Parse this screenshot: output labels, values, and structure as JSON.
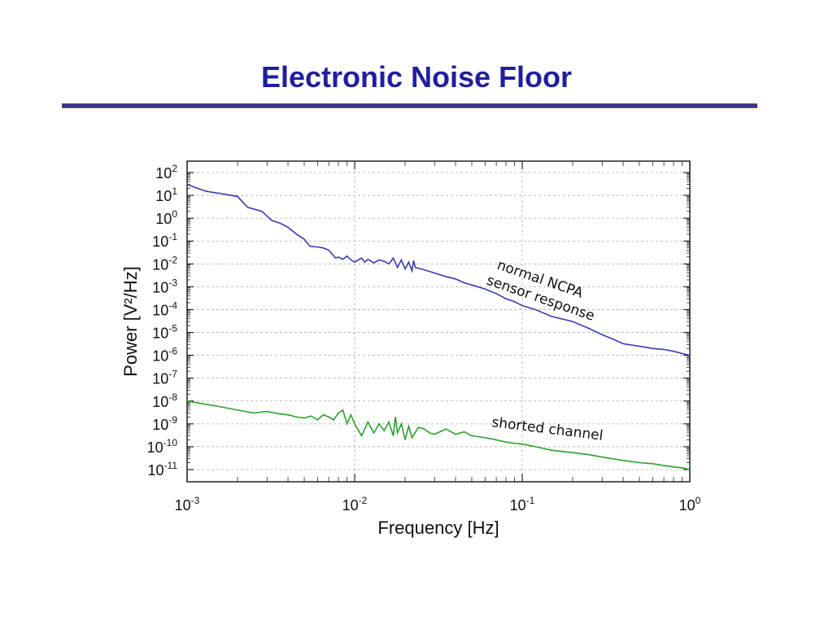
{
  "slide": {
    "title": "Electronic Noise Floor"
  },
  "colors": {
    "title": "#1f1f9e",
    "rule": "#333399",
    "rule_border": "#c0392b"
  },
  "chart_data": {
    "type": "line",
    "title": "",
    "xlabel": "Frequency [Hz]",
    "ylabel": "Power [V²/Hz]",
    "xscale": "log",
    "yscale": "log",
    "xlim": [
      0.001,
      1
    ],
    "ylim": [
      1e-11,
      100
    ],
    "grid": true,
    "x_ticks": [
      {
        "value": 0.001,
        "base": "10",
        "exp": "-3"
      },
      {
        "value": 0.01,
        "base": "10",
        "exp": "-2"
      },
      {
        "value": 0.1,
        "base": "10",
        "exp": "-1"
      },
      {
        "value": 1,
        "base": "10",
        "exp": "0"
      }
    ],
    "y_ticks": [
      {
        "value": 100,
        "base": "10",
        "exp": "2"
      },
      {
        "value": 10,
        "base": "10",
        "exp": "1"
      },
      {
        "value": 1,
        "base": "10",
        "exp": "0"
      },
      {
        "value": 0.1,
        "base": "10",
        "exp": "-1"
      },
      {
        "value": 0.01,
        "base": "10",
        "exp": "-2"
      },
      {
        "value": 0.001,
        "base": "10",
        "exp": "-3"
      },
      {
        "value": 0.0001,
        "base": "10",
        "exp": "-4"
      },
      {
        "value": 1e-05,
        "base": "10",
        "exp": "-5"
      },
      {
        "value": 1e-06,
        "base": "10",
        "exp": "-6"
      },
      {
        "value": 1e-07,
        "base": "10",
        "exp": "-7"
      },
      {
        "value": 1e-08,
        "base": "10",
        "exp": "-8"
      },
      {
        "value": 1e-09,
        "base": "10",
        "exp": "-9"
      },
      {
        "value": 1e-10,
        "base": "10",
        "exp": "-10"
      },
      {
        "value": 1e-11,
        "base": "10",
        "exp": "-11"
      }
    ],
    "series": [
      {
        "name": "normal NCPA sensor response",
        "label_lines": [
          "normal NCPA",
          "sensor response"
        ],
        "color": "#3a3ab0",
        "points": [
          [
            0.001,
            30
          ],
          [
            0.0013,
            15
          ],
          [
            0.0016,
            12
          ],
          [
            0.002,
            9
          ],
          [
            0.0023,
            3
          ],
          [
            0.0028,
            2
          ],
          [
            0.0032,
            0.8
          ],
          [
            0.0036,
            0.6
          ],
          [
            0.004,
            0.4
          ],
          [
            0.0045,
            0.2
          ],
          [
            0.005,
            0.12
          ],
          [
            0.0054,
            0.06
          ],
          [
            0.006,
            0.055
          ],
          [
            0.0065,
            0.05
          ],
          [
            0.007,
            0.04
          ],
          [
            0.0074,
            0.025
          ],
          [
            0.0077,
            0.018
          ],
          [
            0.008,
            0.02
          ],
          [
            0.0085,
            0.016
          ],
          [
            0.009,
            0.022
          ],
          [
            0.0095,
            0.015
          ],
          [
            0.01,
            0.012
          ],
          [
            0.011,
            0.018
          ],
          [
            0.0115,
            0.012
          ],
          [
            0.012,
            0.016
          ],
          [
            0.013,
            0.011
          ],
          [
            0.014,
            0.015
          ],
          [
            0.015,
            0.013
          ],
          [
            0.016,
            0.01
          ],
          [
            0.017,
            0.018
          ],
          [
            0.018,
            0.007
          ],
          [
            0.019,
            0.015
          ],
          [
            0.02,
            0.006
          ],
          [
            0.021,
            0.012
          ],
          [
            0.022,
            0.005
          ],
          [
            0.0225,
            0.014
          ],
          [
            0.023,
            0.007
          ],
          [
            0.025,
            0.006
          ],
          [
            0.03,
            0.004
          ],
          [
            0.035,
            0.0028
          ],
          [
            0.04,
            0.0022
          ],
          [
            0.045,
            0.0015
          ],
          [
            0.05,
            0.0012
          ],
          [
            0.06,
            0.0008
          ],
          [
            0.07,
            0.0005
          ],
          [
            0.08,
            0.0003
          ],
          [
            0.09,
            0.00022
          ],
          [
            0.1,
            0.00015
          ],
          [
            0.12,
            0.0001
          ],
          [
            0.15,
            5e-05
          ],
          [
            0.2,
            3e-05
          ],
          [
            0.25,
            1.5e-05
          ],
          [
            0.3,
            8e-06
          ],
          [
            0.35,
            5e-06
          ],
          [
            0.4,
            3.2e-06
          ],
          [
            0.5,
            2.5e-06
          ],
          [
            0.6,
            2e-06
          ],
          [
            0.7,
            1.8e-06
          ],
          [
            0.8,
            1.5e-06
          ],
          [
            0.9,
            1.2e-06
          ],
          [
            1,
            1e-06
          ]
        ]
      },
      {
        "name": "shorted channel",
        "label_lines": [
          "shorted channel"
        ],
        "color": "#2e9e2e",
        "points": [
          [
            0.001,
            1e-08
          ],
          [
            0.0015,
            6e-09
          ],
          [
            0.002,
            4e-09
          ],
          [
            0.0025,
            3e-09
          ],
          [
            0.003,
            3.5e-09
          ],
          [
            0.0035,
            2.8e-09
          ],
          [
            0.004,
            2.5e-09
          ],
          [
            0.0045,
            2e-09
          ],
          [
            0.005,
            1.8e-09
          ],
          [
            0.0055,
            2.2e-09
          ],
          [
            0.006,
            1.5e-09
          ],
          [
            0.0065,
            2.5e-09
          ],
          [
            0.007,
            2e-09
          ],
          [
            0.0075,
            1.5e-09
          ],
          [
            0.008,
            3e-09
          ],
          [
            0.0085,
            4e-09
          ],
          [
            0.009,
            1e-09
          ],
          [
            0.0095,
            2.5e-09
          ],
          [
            0.01,
            1e-09
          ],
          [
            0.011,
            3e-10
          ],
          [
            0.012,
            1.2e-09
          ],
          [
            0.013,
            4e-10
          ],
          [
            0.014,
            1e-09
          ],
          [
            0.015,
            5e-10
          ],
          [
            0.016,
            1.2e-09
          ],
          [
            0.017,
            3e-10
          ],
          [
            0.0175,
            2e-09
          ],
          [
            0.018,
            4e-10
          ],
          [
            0.019,
            1e-09
          ],
          [
            0.02,
            2e-10
          ],
          [
            0.021,
            8e-10
          ],
          [
            0.022,
            2.5e-10
          ],
          [
            0.024,
            7e-10
          ],
          [
            0.026,
            6e-10
          ],
          [
            0.028,
            4e-10
          ],
          [
            0.03,
            3.5e-10
          ],
          [
            0.035,
            6e-10
          ],
          [
            0.04,
            3.5e-10
          ],
          [
            0.045,
            4.5e-10
          ],
          [
            0.05,
            3e-10
          ],
          [
            0.06,
            2.5e-10
          ],
          [
            0.07,
            2e-10
          ],
          [
            0.08,
            1.6e-10
          ],
          [
            0.09,
            1.4e-10
          ],
          [
            0.1,
            1.3e-10
          ],
          [
            0.12,
            1e-10
          ],
          [
            0.15,
            7e-11
          ],
          [
            0.2,
            5.5e-11
          ],
          [
            0.25,
            4.5e-11
          ],
          [
            0.3,
            3.5e-11
          ],
          [
            0.4,
            2.5e-11
          ],
          [
            0.5,
            2e-11
          ],
          [
            0.6,
            1.8e-11
          ],
          [
            0.7,
            1.5e-11
          ],
          [
            0.8,
            1.3e-11
          ],
          [
            0.9,
            1.2e-11
          ],
          [
            1,
            1e-11
          ]
        ]
      }
    ]
  }
}
